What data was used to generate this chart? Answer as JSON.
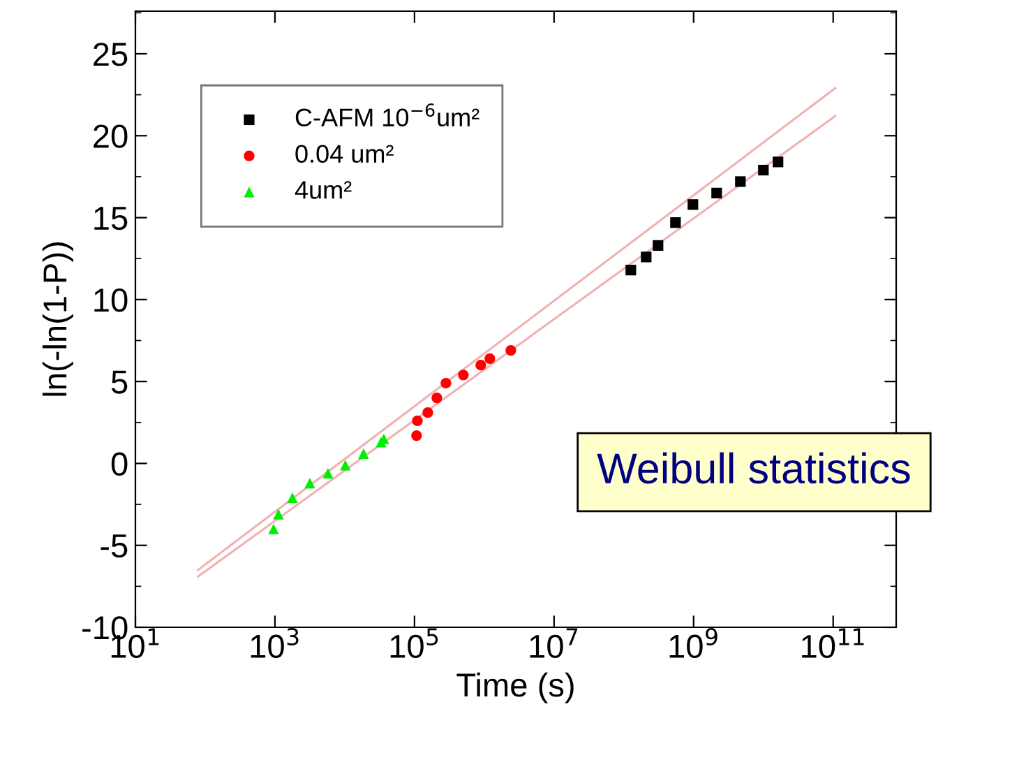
{
  "chart_data": {
    "type": "scatter",
    "xlabel": "Time (s)",
    "ylabel": "ln(-ln(1-P))",
    "log": "x",
    "xlim": [
      10,
      800000000000.0
    ],
    "ylim": [
      -10,
      27.6
    ],
    "xticks": [
      {
        "value": 10,
        "label": "10$^{1}$"
      },
      {
        "value": 1000,
        "label": "10$^{3}$"
      },
      {
        "value": 100000,
        "label": "10$^{5}$"
      },
      {
        "value": 10000000,
        "label": "10$^{7}$"
      },
      {
        "value": 1000000000,
        "label": "10$^{9}$"
      },
      {
        "value": 100000000000,
        "label": "10$^{11}$"
      }
    ],
    "yticks": [
      -10,
      -5,
      0,
      5,
      10,
      15,
      20,
      25
    ],
    "grid": false,
    "legend": "top left",
    "annotations": [
      "Weibull statistics"
    ],
    "series": [
      {
        "name": "C-AFM 10$^{−6}$um²",
        "color": "#000000",
        "marker": "square",
        "x": [
          126000000.0,
          209000000.0,
          309000000.0,
          550000000.0,
          977000000.0,
          2140000000.0,
          4680000000.0,
          10000000000.0,
          16200000000.0
        ],
        "values": [
          11.8,
          12.6,
          13.3,
          14.7,
          15.8,
          16.5,
          17.2,
          17.9,
          18.4
        ]
      },
      {
        "name": "0.04 um²",
        "color": "#ff0000",
        "marker": "circle",
        "x": [
          107000.0,
          110000.0,
          155000.0,
          209000.0,
          282000.0,
          501000.0,
          891000.0,
          1200000.0,
          2400000.0
        ],
        "values": [
          1.7,
          2.6,
          3.1,
          4.0,
          4.9,
          5.4,
          6.0,
          6.4,
          6.9
        ]
      },
      {
        "name": "4um²",
        "color": "#00ee00",
        "marker": "triangle",
        "x": [
          955,
          1122,
          1778,
          3162,
          5754,
          10200,
          18600,
          33100,
          36300
        ],
        "values": [
          -4.0,
          -3.1,
          -2.1,
          -1.2,
          -0.6,
          -0.1,
          0.6,
          1.3,
          1.5
        ]
      },
      {
        "type": "line",
        "color": "#f2b0b0",
        "x": [
          79,
          107000000000.0
        ],
        "values": [
          -6.5,
          22.9
        ]
      },
      {
        "type": "line",
        "color": "#f2b0b0",
        "x": [
          79,
          107000000000.0
        ],
        "values": [
          -6.9,
          21.2
        ]
      }
    ]
  }
}
